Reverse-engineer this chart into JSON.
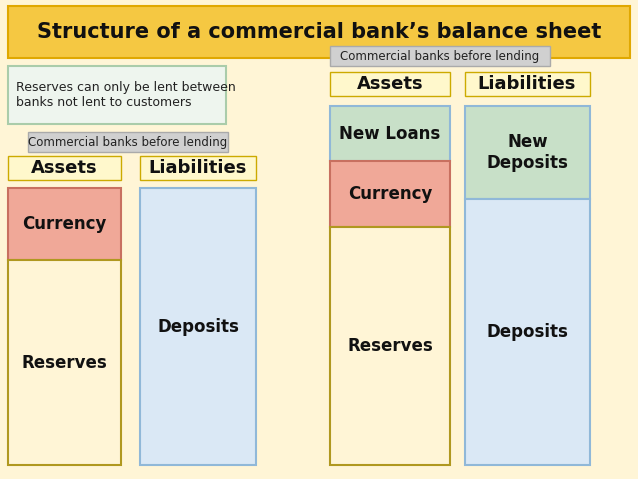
{
  "title": "Structure of a commercial bank’s balance sheet",
  "bg_color": "#FFFFFF",
  "outer_bg": "#F0F0F0",
  "title_bg": "#F5C842",
  "title_border": "#E0A800",
  "note_left_text": "Reserves can only be lent between\nbanks not lent to customers",
  "note_left_bg": "#EEF5EE",
  "note_left_border": "#AACCAA",
  "label_before_bg": "#D0D0D0",
  "label_before_border": "#AAAAAA",
  "label_before_left": "Commercial banks before lending",
  "label_before_right": "Commercial banks before lending",
  "assets_label": "Assets",
  "liabilities_label": "Liabilities",
  "hdr_bg": "#FFF8CC",
  "currency_color": "#F0A898",
  "reserves_color": "#FFF5D6",
  "deposits_color": "#DAE8F5",
  "new_loans_color": "#C8E0C8",
  "new_deposits_color": "#C8E0C8",
  "col_border_asset": "#C87060",
  "col_border_liab": "#90B8D8",
  "col_border_reserve": "#C09030"
}
